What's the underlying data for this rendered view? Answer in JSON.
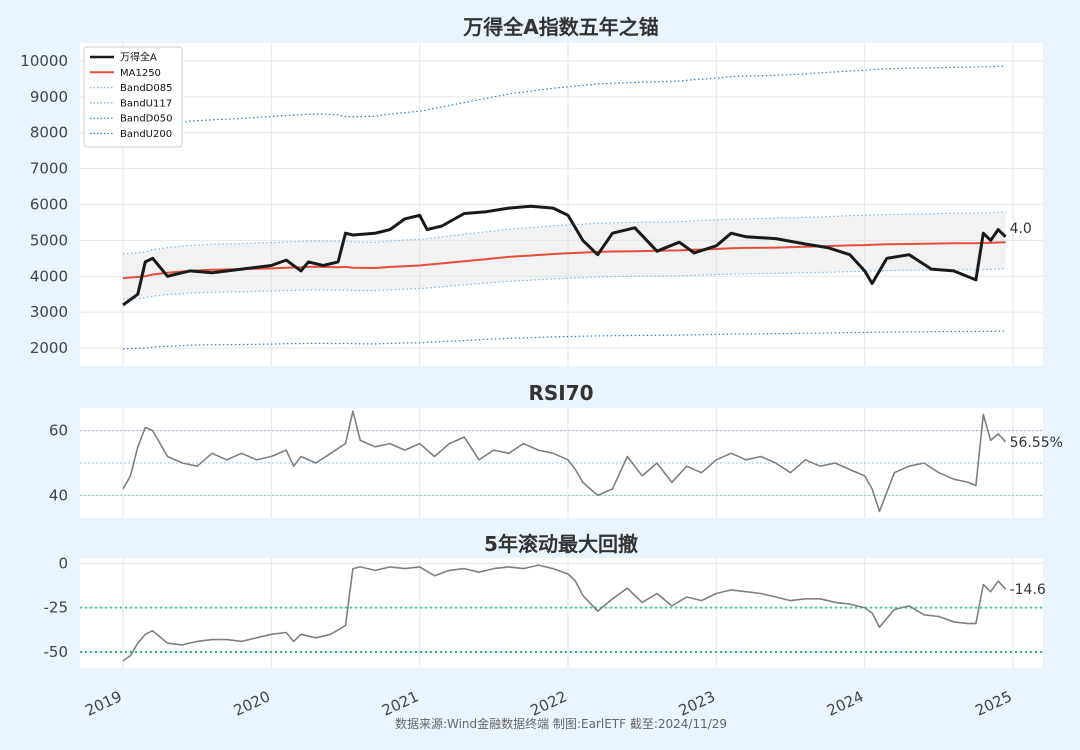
{
  "footer": "数据来源:Wind金融数据终端  制图:EarlETF 截至:2024/11/29",
  "x_axis": {
    "ticks": [
      "2019",
      "2020",
      "2021",
      "2022",
      "2023",
      "2024",
      "2025"
    ]
  },
  "chart_data": [
    {
      "type": "line",
      "title": "万得全A指数五年之锚",
      "ylim": [
        1500,
        10500
      ],
      "yticks": [
        2000,
        3000,
        4000,
        5000,
        6000,
        7000,
        8000,
        9000,
        10000
      ],
      "legend": "top-left",
      "end_label": "4.0",
      "x": [
        2019.0,
        2019.1,
        2019.15,
        2019.2,
        2019.3,
        2019.45,
        2019.6,
        2019.8,
        2020.0,
        2020.1,
        2020.2,
        2020.25,
        2020.35,
        2020.45,
        2020.5,
        2020.55,
        2020.7,
        2020.8,
        2020.9,
        2021.0,
        2021.05,
        2021.15,
        2021.3,
        2021.45,
        2021.6,
        2021.75,
        2021.9,
        2022.0,
        2022.1,
        2022.2,
        2022.3,
        2022.45,
        2022.6,
        2022.75,
        2022.85,
        2023.0,
        2023.1,
        2023.2,
        2023.4,
        2023.6,
        2023.75,
        2023.9,
        2024.0,
        2024.05,
        2024.15,
        2024.3,
        2024.45,
        2024.6,
        2024.75,
        2024.8,
        2024.85,
        2024.9,
        2024.95
      ],
      "series": [
        {
          "name": "万得全A",
          "color": "#1a1a1a",
          "style": "solid",
          "width": 3,
          "values": [
            3200,
            3500,
            4400,
            4500,
            4000,
            4150,
            4100,
            4200,
            4300,
            4450,
            4150,
            4400,
            4300,
            4400,
            5200,
            5150,
            5200,
            5300,
            5600,
            5700,
            5300,
            5400,
            5750,
            5800,
            5900,
            5950,
            5900,
            5700,
            5000,
            4600,
            5200,
            5350,
            4700,
            4950,
            4650,
            4850,
            5200,
            5100,
            5050,
            4900,
            4800,
            4600,
            4150,
            3800,
            4500,
            4600,
            4200,
            4150,
            3900,
            5200,
            5000,
            5300,
            5100
          ]
        },
        {
          "name": "MA1250",
          "color": "#e74c3c",
          "style": "solid",
          "width": 2,
          "values": [
            3950,
            3980,
            4000,
            4050,
            4100,
            4150,
            4180,
            4200,
            4220,
            4240,
            4250,
            4260,
            4260,
            4250,
            4260,
            4240,
            4230,
            4260,
            4280,
            4300,
            4320,
            4360,
            4420,
            4480,
            4540,
            4580,
            4620,
            4640,
            4660,
            4680,
            4690,
            4700,
            4710,
            4720,
            4740,
            4760,
            4780,
            4790,
            4800,
            4820,
            4840,
            4860,
            4870,
            4880,
            4890,
            4900,
            4910,
            4920,
            4920,
            4930,
            4930,
            4940,
            4950
          ]
        },
        {
          "name": "BandD085",
          "color": "#7fb8e0",
          "style": "dotted",
          "width": 1.2,
          "values": [
            3360,
            3380,
            3400,
            3440,
            3490,
            3530,
            3550,
            3570,
            3590,
            3600,
            3610,
            3620,
            3620,
            3610,
            3620,
            3600,
            3600,
            3620,
            3640,
            3660,
            3670,
            3710,
            3760,
            3810,
            3860,
            3890,
            3930,
            3940,
            3960,
            3980,
            3990,
            4000,
            4000,
            4010,
            4030,
            4050,
            4060,
            4070,
            4080,
            4100,
            4110,
            4130,
            4140,
            4150,
            4160,
            4170,
            4170,
            4180,
            4180,
            4190,
            4190,
            4200,
            4210
          ]
        },
        {
          "name": "BandU117",
          "color": "#7fb8e0",
          "style": "dotted",
          "width": 1.2,
          "values": [
            4620,
            4660,
            4680,
            4740,
            4800,
            4860,
            4890,
            4910,
            4940,
            4960,
            4970,
            4980,
            4980,
            4970,
            4980,
            4960,
            4950,
            4980,
            5010,
            5030,
            5050,
            5100,
            5170,
            5240,
            5310,
            5360,
            5410,
            5430,
            5450,
            5480,
            5490,
            5500,
            5510,
            5520,
            5550,
            5570,
            5590,
            5600,
            5620,
            5640,
            5660,
            5690,
            5700,
            5710,
            5720,
            5730,
            5740,
            5760,
            5760,
            5770,
            5770,
            5780,
            5790
          ]
        },
        {
          "name": "BandD050",
          "color": "#2d7fc1",
          "style": "dotted",
          "width": 1.2,
          "values": [
            1980,
            1990,
            2000,
            2030,
            2050,
            2080,
            2090,
            2100,
            2110,
            2120,
            2125,
            2130,
            2130,
            2125,
            2130,
            2120,
            2115,
            2130,
            2140,
            2150,
            2160,
            2180,
            2210,
            2240,
            2270,
            2290,
            2310,
            2320,
            2330,
            2340,
            2345,
            2350,
            2355,
            2360,
            2370,
            2380,
            2390,
            2395,
            2400,
            2410,
            2420,
            2430,
            2435,
            2440,
            2445,
            2450,
            2455,
            2460,
            2460,
            2465,
            2465,
            2470,
            2475
          ]
        },
        {
          "name": "BandU200",
          "color": "#2d7fc1",
          "style": "dotted",
          "width": 1.2,
          "values": [
            7900,
            7960,
            8000,
            8100,
            8200,
            8320,
            8360,
            8400,
            8450,
            8480,
            8500,
            8520,
            8520,
            8500,
            8450,
            8440,
            8460,
            8520,
            8560,
            8600,
            8640,
            8720,
            8840,
            8960,
            9080,
            9160,
            9240,
            9280,
            9320,
            9360,
            9380,
            9400,
            9420,
            9440,
            9480,
            9520,
            9560,
            9580,
            9600,
            9640,
            9680,
            9720,
            9740,
            9760,
            9780,
            9800,
            9810,
            9820,
            9830,
            9840,
            9840,
            9850,
            9860
          ]
        }
      ]
    },
    {
      "type": "line",
      "title": "RSI70",
      "ylim": [
        33,
        67
      ],
      "yticks": [
        40,
        60
      ],
      "hlines": [
        40,
        50,
        60
      ],
      "end_label": "56.55%",
      "x": [
        2019.0,
        2019.05,
        2019.1,
        2019.15,
        2019.2,
        2019.3,
        2019.4,
        2019.5,
        2019.6,
        2019.7,
        2019.8,
        2019.9,
        2020.0,
        2020.1,
        2020.15,
        2020.2,
        2020.3,
        2020.4,
        2020.5,
        2020.55,
        2020.6,
        2020.7,
        2020.8,
        2020.9,
        2021.0,
        2021.1,
        2021.2,
        2021.3,
        2021.4,
        2021.5,
        2021.6,
        2021.7,
        2021.8,
        2021.9,
        2022.0,
        2022.05,
        2022.1,
        2022.2,
        2022.3,
        2022.4,
        2022.5,
        2022.6,
        2022.7,
        2022.8,
        2022.9,
        2023.0,
        2023.1,
        2023.2,
        2023.3,
        2023.4,
        2023.5,
        2023.6,
        2023.7,
        2023.8,
        2023.9,
        2024.0,
        2024.05,
        2024.1,
        2024.2,
        2024.3,
        2024.4,
        2024.5,
        2024.6,
        2024.7,
        2024.75,
        2024.8,
        2024.85,
        2024.9,
        2024.95
      ],
      "values": [
        42,
        46,
        55,
        61,
        60,
        52,
        50,
        49,
        53,
        51,
        53,
        51,
        52,
        54,
        49,
        52,
        50,
        53,
        56,
        66,
        57,
        55,
        56,
        54,
        56,
        52,
        56,
        58,
        51,
        54,
        53,
        56,
        54,
        53,
        51,
        48,
        44,
        40,
        42,
        52,
        46,
        50,
        44,
        49,
        47,
        51,
        53,
        51,
        52,
        50,
        47,
        51,
        49,
        50,
        48,
        46,
        42,
        35,
        47,
        49,
        50,
        47,
        45,
        44,
        43,
        65,
        57,
        59,
        56.55
      ]
    },
    {
      "type": "line",
      "title": "5年滚动最大回撤",
      "ylim": [
        -59,
        3
      ],
      "yticks": [
        0,
        -25,
        -50
      ],
      "hlines": [
        -25,
        -50
      ],
      "end_label": "-14.6",
      "x": [
        2019.0,
        2019.05,
        2019.1,
        2019.15,
        2019.2,
        2019.3,
        2019.4,
        2019.5,
        2019.6,
        2019.7,
        2019.8,
        2019.9,
        2020.0,
        2020.1,
        2020.15,
        2020.2,
        2020.3,
        2020.4,
        2020.5,
        2020.55,
        2020.6,
        2020.7,
        2020.8,
        2020.9,
        2021.0,
        2021.1,
        2021.2,
        2021.3,
        2021.4,
        2021.5,
        2021.6,
        2021.7,
        2021.8,
        2021.9,
        2022.0,
        2022.05,
        2022.1,
        2022.2,
        2022.3,
        2022.4,
        2022.5,
        2022.6,
        2022.7,
        2022.8,
        2022.9,
        2023.0,
        2023.1,
        2023.2,
        2023.3,
        2023.4,
        2023.5,
        2023.6,
        2023.7,
        2023.8,
        2023.9,
        2024.0,
        2024.05,
        2024.1,
        2024.2,
        2024.3,
        2024.4,
        2024.5,
        2024.6,
        2024.7,
        2024.75,
        2024.8,
        2024.85,
        2024.9,
        2024.95
      ],
      "values": [
        -55,
        -52,
        -45,
        -40,
        -38,
        -45,
        -46,
        -44,
        -43,
        -43,
        -44,
        -42,
        -40,
        -39,
        -44,
        -40,
        -42,
        -40,
        -35,
        -3,
        -2,
        -4,
        -2,
        -3,
        -2,
        -7,
        -4,
        -3,
        -5,
        -3,
        -2,
        -3,
        -1,
        -3,
        -6,
        -10,
        -18,
        -27,
        -20,
        -14,
        -22,
        -17,
        -24,
        -19,
        -21,
        -17,
        -15,
        -16,
        -17,
        -19,
        -21,
        -20,
        -20,
        -22,
        -23,
        -25,
        -28,
        -36,
        -26,
        -24,
        -29,
        -30,
        -33,
        -34,
        -34,
        -12,
        -16,
        -10,
        -14.6
      ]
    }
  ]
}
